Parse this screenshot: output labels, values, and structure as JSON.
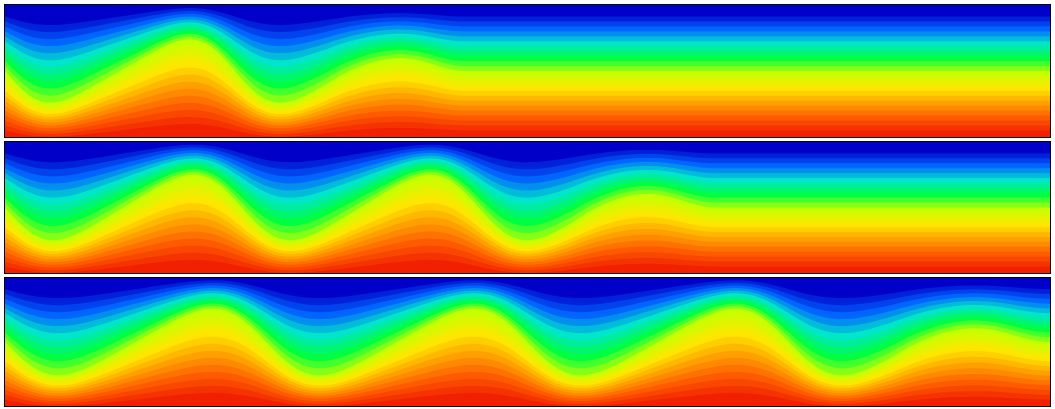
{
  "colormap": {
    "name": "jet",
    "stops": [
      "#0000c8",
      "#0064ff",
      "#00e6c8",
      "#00ff40",
      "#c8ff00",
      "#ffe600",
      "#ffa000",
      "#ff5a00",
      "#f02000"
    ]
  },
  "panels": [
    {
      "id": "panel-1",
      "plume_count": 2,
      "plume_extent": 0.44,
      "amplitude": 0.48,
      "tilt": 0.35
    },
    {
      "id": "panel-2",
      "plume_count": 3,
      "plume_extent": 0.68,
      "amplitude": 0.5,
      "tilt": 0.3
    },
    {
      "id": "panel-3",
      "plume_count": 4,
      "plume_extent": 1.0,
      "amplitude": 0.52,
      "tilt": 0.3
    }
  ]
}
